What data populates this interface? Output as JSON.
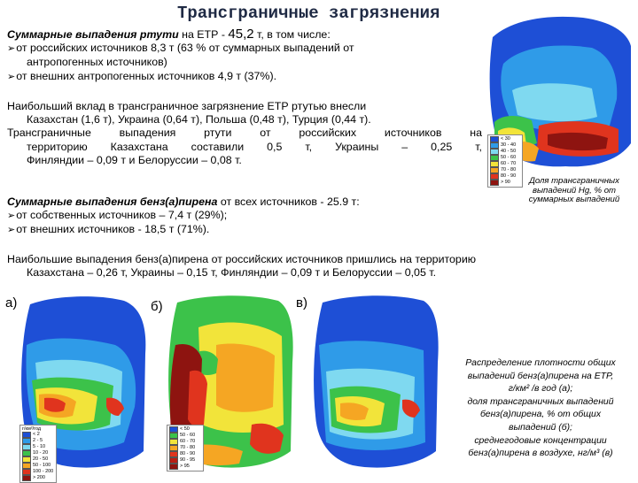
{
  "title": "Трансграничные загрязнения",
  "mercury": {
    "total_bold": "Суммарные выпадения ртути",
    "total_rest_1": " на ЕТР - ",
    "total_value": "45,2",
    "total_rest_2": " т, в том числе:",
    "item1_line1": "от российских источников 8,3 т (63 % от суммарных выпадений от",
    "item1_line2": "антропогенных источников)",
    "item2": "от внешних антропогенных источников 4,9 т (37%).",
    "contrib_line1": "Наибольший вклад в трансграничное загрязнение ЕТР ртутью внесли",
    "contrib_line2": "Казахстан (1,6 т), Украина (0,64 т), Польша (0,48 т), Турция (0,44 т).",
    "contrib_line3": "Трансграничные выпадения ртути от российских источников на",
    "contrib_line4": "территорию Казахстана составили 0,5 т, Украины – 0,25 т,",
    "contrib_line5": "Финляндии – 0,09 т и Белоруссии – 0,08 т.",
    "map_caption_1": "Доля трансграничных",
    "map_caption_2": "выпадений Hg, % от",
    "map_caption_3": "суммарных выпадений",
    "legend": [
      {
        "label": "< 30",
        "color": "#1e4fd6"
      },
      {
        "label": "30 - 40",
        "color": "#2f9be8"
      },
      {
        "label": "40 - 50",
        "color": "#7fd9f0"
      },
      {
        "label": "50 - 60",
        "color": "#3cc24a"
      },
      {
        "label": "60 - 70",
        "color": "#f2e43a"
      },
      {
        "label": "70 - 80",
        "color": "#f5a623"
      },
      {
        "label": "80 - 90",
        "color": "#e0341e"
      },
      {
        "label": "> 90",
        "color": "#8e1410"
      }
    ]
  },
  "bap": {
    "total_bold": "Суммарные выпадения бенз(а)пирена",
    "total_rest": " от всех источников - 25.9 т:",
    "item1": "от собственных источников – 7,4 т (29%);",
    "item2": "от внешних источников - 18,5 т (71%).",
    "contrib_line1": "Наибольшие выпадения бенз(а)пирена от российских источников пришлись на территорию",
    "contrib_line2": "Казахстана – 0,26 т, Украины – 0,15 т, Финляндии – 0,09 т и Белоруссии – 0,05 т.",
    "label_a": "а)",
    "label_b": "б)",
    "label_c": "в)",
    "caption_lines": [
      "Распределение плотности общих",
      "выпадений бенз(а)пирена на ЕТР,",
      "г/км² /в год (а);",
      "доля трансграничных выпадений",
      "бенз(а)пирена, % от общих",
      "выпадений (б);",
      "среднегодовые концентрации",
      "бенз(а)пирена в воздухе, нг/м³ (в)"
    ],
    "legend_a_title": "г/км²/год",
    "legend_a": [
      {
        "label": "< 2",
        "color": "#1e4fd6"
      },
      {
        "label": "2 - 5",
        "color": "#2f9be8"
      },
      {
        "label": "5 - 10",
        "color": "#7fd9f0"
      },
      {
        "label": "10 - 20",
        "color": "#3cc24a"
      },
      {
        "label": "20 - 50",
        "color": "#f2e43a"
      },
      {
        "label": "50 - 100",
        "color": "#f5a623"
      },
      {
        "label": "100 - 200",
        "color": "#e0341e"
      },
      {
        "label": "> 200",
        "color": "#8e1410"
      }
    ],
    "legend_b": [
      {
        "label": "< 50",
        "color": "#1e4fd6"
      },
      {
        "label": "50 - 60",
        "color": "#3cc24a"
      },
      {
        "label": "60 - 70",
        "color": "#f2e43a"
      },
      {
        "label": "70 - 80",
        "color": "#f5a623"
      },
      {
        "label": "80 - 90",
        "color": "#e0341e"
      },
      {
        "label": "90 - 95",
        "color": "#b81e14"
      },
      {
        "label": "> 95",
        "color": "#8e1410"
      }
    ]
  }
}
